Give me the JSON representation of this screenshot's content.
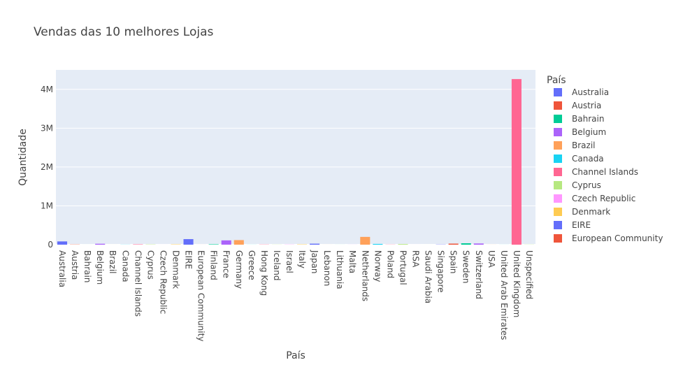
{
  "chart_data": {
    "type": "bar",
    "title": "Vendas das 10 melhores Lojas",
    "xlabel": "País",
    "ylabel": "Quantidade",
    "legend_title": "País",
    "ylim": [
      0,
      4500000
    ],
    "yticks": [
      0,
      1000000,
      2000000,
      3000000,
      4000000
    ],
    "ytick_labels": [
      "0",
      "1M",
      "2M",
      "3M",
      "4M"
    ],
    "grid": true,
    "legend_position": "right",
    "categories": [
      "Australia",
      "Austria",
      "Bahrain",
      "Belgium",
      "Brazil",
      "Canada",
      "Channel Islands",
      "Cyprus",
      "Czech Republic",
      "Denmark",
      "EIRE",
      "European Community",
      "Finland",
      "France",
      "Germany",
      "Greece",
      "Hong Kong",
      "Iceland",
      "Israel",
      "Italy",
      "Japan",
      "Lebanon",
      "Lithuania",
      "Malta",
      "Netherlands",
      "Norway",
      "Poland",
      "Portugal",
      "RSA",
      "Saudi Arabia",
      "Singapore",
      "Spain",
      "Sweden",
      "Switzerland",
      "USA",
      "United Arab Emirates",
      "United Kingdom",
      "Unspecified"
    ],
    "values": [
      83653,
      4827,
      260,
      23152,
      356,
      2763,
      9479,
      6317,
      592,
      8188,
      142637,
      497,
      10666,
      110480,
      117448,
      1556,
      4769,
      2458,
      4353,
      7999,
      25218,
      386,
      652,
      944,
      200128,
      19247,
      3653,
      16180,
      352,
      75,
      5234,
      26824,
      35637,
      30325,
      1034,
      982,
      4263829,
      3300
    ],
    "colors": [
      "#636efa",
      "#EF553B",
      "#00cc96",
      "#ab63fa",
      "#FFA15A",
      "#19d3f3",
      "#FF6692",
      "#B6E880",
      "#FF97FF",
      "#FECB52"
    ],
    "legend_entries": [
      "Australia",
      "Austria",
      "Bahrain",
      "Belgium",
      "Brazil",
      "Canada",
      "Channel Islands",
      "Cyprus",
      "Czech Republic",
      "Denmark",
      "EIRE",
      "European Community"
    ],
    "plot_background": "#e5ecf6"
  }
}
